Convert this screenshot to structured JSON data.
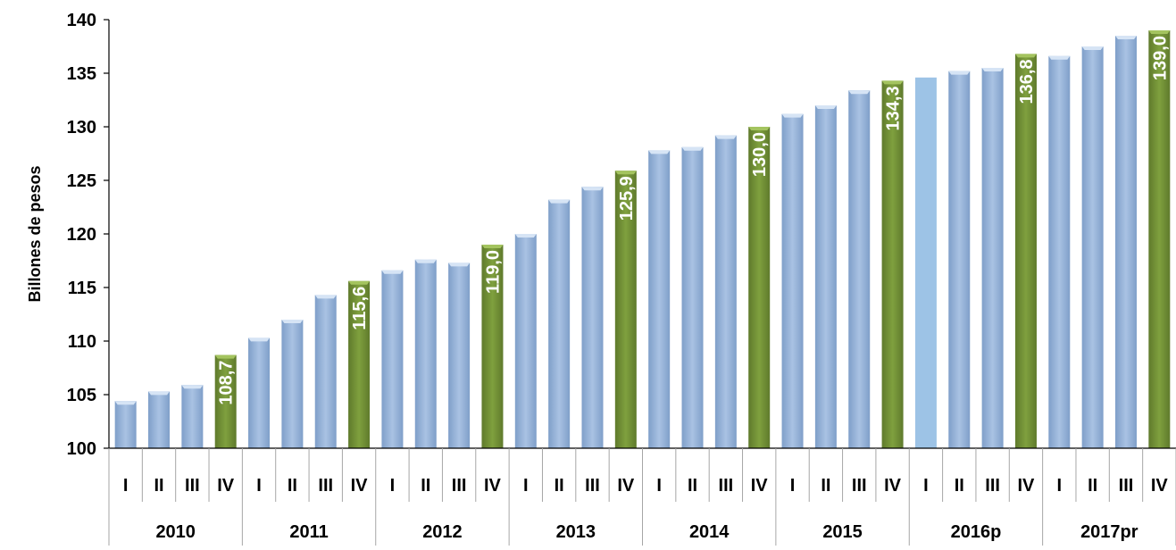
{
  "chart_data": {
    "type": "bar",
    "title": "",
    "ylabel": "Billones de pesos",
    "xlabel": "",
    "ylim": [
      100,
      140
    ],
    "yticks": [
      100,
      105,
      110,
      115,
      120,
      125,
      130,
      135,
      140
    ],
    "grid": false,
    "legend": "none",
    "quarter_labels": [
      "I",
      "II",
      "III",
      "IV"
    ],
    "years": [
      {
        "label": "2010",
        "values": [
          104.4,
          105.3,
          105.9,
          108.7
        ]
      },
      {
        "label": "2011",
        "values": [
          110.3,
          112.0,
          114.3,
          115.6
        ]
      },
      {
        "label": "2012",
        "values": [
          116.6,
          117.6,
          117.3,
          119.0
        ]
      },
      {
        "label": "2013",
        "values": [
          120.0,
          123.2,
          124.4,
          125.9
        ]
      },
      {
        "label": "2014",
        "values": [
          127.8,
          128.1,
          129.2,
          130.0
        ]
      },
      {
        "label": "2015",
        "values": [
          131.2,
          132.0,
          133.4,
          134.3
        ]
      },
      {
        "label": "2016p",
        "values": [
          134.6,
          135.2,
          135.5,
          136.8
        ]
      },
      {
        "label": "2017pr",
        "values": [
          136.6,
          137.5,
          138.5,
          139.0
        ]
      }
    ],
    "data_labels": {
      "2010-IV": "108,7",
      "2011-IV": "115,6",
      "2012-IV": "119,0",
      "2013-IV": "125,9",
      "2014-IV": "130,0",
      "2015-IV": "134,3",
      "2016p-IV": "136,8",
      "2017pr-IV": "139,0"
    },
    "colors": {
      "bar": "#95B3D7",
      "bar_highlight": "#76933C",
      "bar_light": "#9DC3E6",
      "axis": "#000000",
      "divider": "#A6A6A6",
      "label_text": "#ffffff"
    }
  }
}
